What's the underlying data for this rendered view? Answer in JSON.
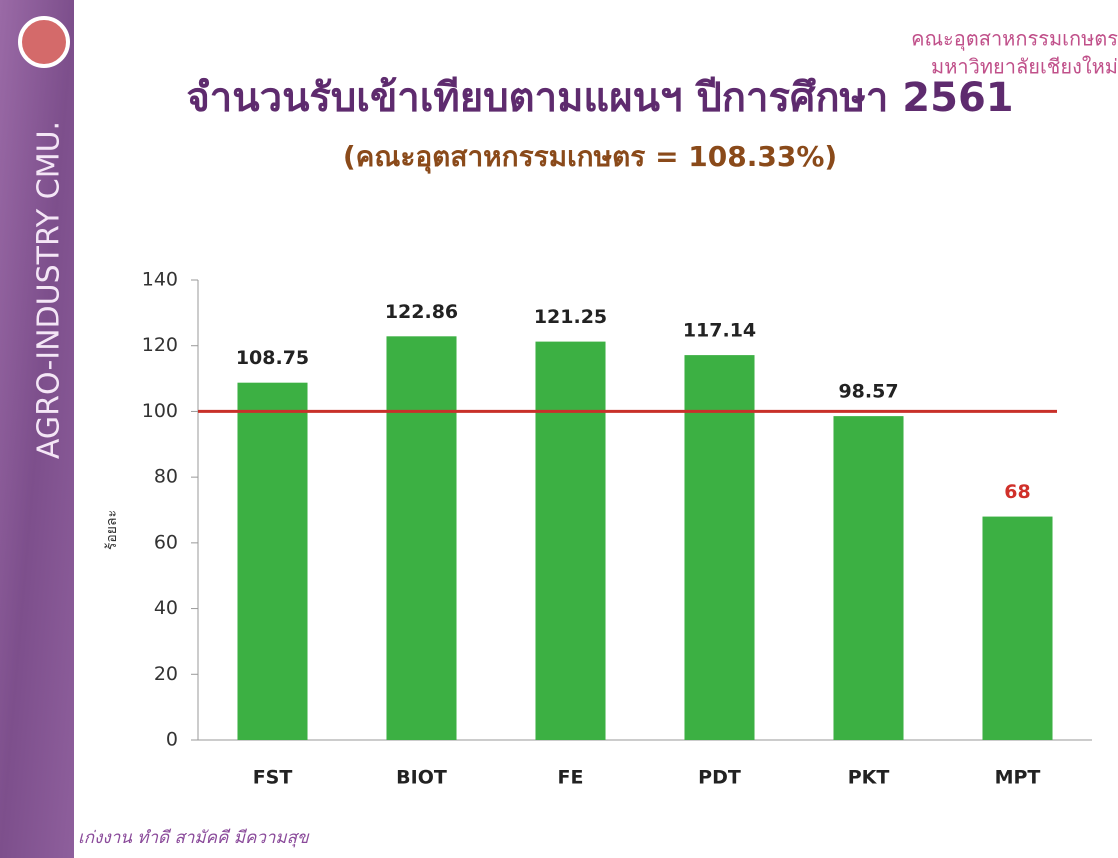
{
  "side_text": "AGRO-INDUSTRY  CMU.",
  "corner_text": [
    "คณะอุตสาหกรรมเกษตร",
    "มหาวิทยาลัยเชียงใหม่"
  ],
  "footer": "เก่งงาน ทำดี สามัคคี มีความสุข",
  "chart_data": {
    "type": "bar",
    "title": "จำนวนรับเข้าเทียบตามแผนฯ ปีการศึกษา 2561",
    "subtitle": "(คณะอุตสาหกรรมเกษตร = 108.33%)",
    "y_label": "ร้อยละ",
    "categories": [
      "FST",
      "BIOT",
      "FE",
      "PDT",
      "PKT",
      "MPT"
    ],
    "values": [
      108.75,
      122.86,
      121.25,
      117.14,
      98.57,
      68
    ],
    "color": "#3cb043",
    "label_colors": [
      "#222222",
      "#222222",
      "#222222",
      "#222222",
      "#222222",
      "#d0302a"
    ],
    "reference_line": {
      "value": 100,
      "color": "#c8302a"
    },
    "ylim": [
      0,
      140
    ],
    "yticks": [
      0,
      20,
      40,
      60,
      80,
      100,
      120,
      140
    ],
    "grid": false
  }
}
